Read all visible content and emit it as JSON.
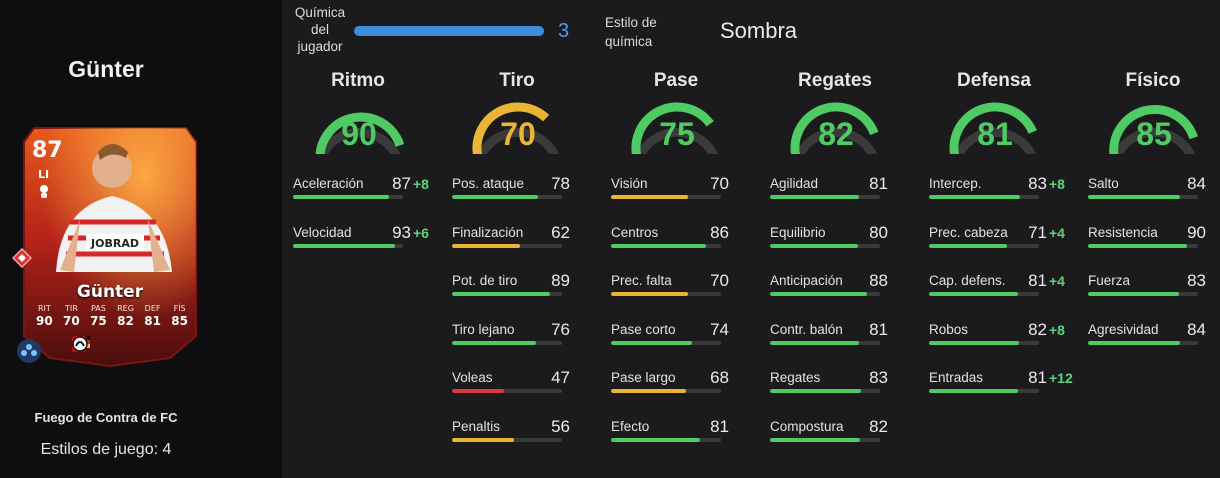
{
  "player": {
    "name": "Günter",
    "version": "Fuego de Contra de FC",
    "playstyles": "Estilos de juego: 4"
  },
  "card": {
    "ovr": "87",
    "position": "LI",
    "name": "Günter",
    "shirt_text": "JOBRAD",
    "stats": [
      {
        "label": "RIT",
        "value": "90"
      },
      {
        "label": "TIR",
        "value": "70"
      },
      {
        "label": "PAS",
        "value": "75"
      },
      {
        "label": "REG",
        "value": "82"
      },
      {
        "label": "DEF",
        "value": "81"
      },
      {
        "label": "FÍS",
        "value": "85"
      }
    ]
  },
  "chemistry": {
    "label": "Química del jugador",
    "value": "3",
    "level_fraction": 1.0,
    "style_label": "Estilo de química",
    "style_value": "Sombra"
  },
  "colors": {
    "green": "#4ecb63",
    "yellow": "#e9b533",
    "red": "#d83a3e",
    "blue": "#3e8ede",
    "track": "#3a3a3a"
  },
  "categories": [
    {
      "name": "Ritmo",
      "value": 90,
      "color": "#4ecb63",
      "stats": [
        {
          "label": "Aceleración",
          "value": 87,
          "boost": "+8",
          "color": "#4ecb63"
        },
        {
          "label": "Velocidad",
          "value": 93,
          "boost": "+6",
          "color": "#4ecb63"
        }
      ]
    },
    {
      "name": "Tiro",
      "value": 70,
      "color": "#e9b533",
      "stats": [
        {
          "label": "Pos. ataque",
          "value": 78,
          "boost": "",
          "color": "#4ecb63"
        },
        {
          "label": "Finalización",
          "value": 62,
          "boost": "",
          "color": "#e9b533"
        },
        {
          "label": "Pot. de tiro",
          "value": 89,
          "boost": "",
          "color": "#4ecb63"
        },
        {
          "label": "Tiro lejano",
          "value": 76,
          "boost": "",
          "color": "#4ecb63"
        },
        {
          "label": "Voleas",
          "value": 47,
          "boost": "",
          "color": "#d83a3e"
        },
        {
          "label": "Penaltis",
          "value": 56,
          "boost": "",
          "color": "#e9b533"
        }
      ]
    },
    {
      "name": "Pase",
      "value": 75,
      "color": "#4ecb63",
      "stats": [
        {
          "label": "Visión",
          "value": 70,
          "boost": "",
          "color": "#e9b533"
        },
        {
          "label": "Centros",
          "value": 86,
          "boost": "",
          "color": "#4ecb63"
        },
        {
          "label": "Prec. falta",
          "value": 70,
          "boost": "",
          "color": "#e9b533"
        },
        {
          "label": "Pase corto",
          "value": 74,
          "boost": "",
          "color": "#4ecb63"
        },
        {
          "label": "Pase largo",
          "value": 68,
          "boost": "",
          "color": "#e9b533"
        },
        {
          "label": "Efecto",
          "value": 81,
          "boost": "",
          "color": "#4ecb63"
        }
      ]
    },
    {
      "name": "Regates",
      "value": 82,
      "color": "#4ecb63",
      "stats": [
        {
          "label": "Agilidad",
          "value": 81,
          "boost": "",
          "color": "#4ecb63"
        },
        {
          "label": "Equilibrio",
          "value": 80,
          "boost": "",
          "color": "#4ecb63"
        },
        {
          "label": "Anticipación",
          "value": 88,
          "boost": "",
          "color": "#4ecb63"
        },
        {
          "label": "Contr. balón",
          "value": 81,
          "boost": "",
          "color": "#4ecb63"
        },
        {
          "label": "Regates",
          "value": 83,
          "boost": "",
          "color": "#4ecb63"
        },
        {
          "label": "Compostura",
          "value": 82,
          "boost": "",
          "color": "#4ecb63"
        }
      ]
    },
    {
      "name": "Defensa",
      "value": 81,
      "color": "#4ecb63",
      "stats": [
        {
          "label": "Intercep.",
          "value": 83,
          "boost": "+8",
          "color": "#4ecb63"
        },
        {
          "label": "Prec. cabeza",
          "value": 71,
          "boost": "+4",
          "color": "#4ecb63"
        },
        {
          "label": "Cap. defens.",
          "value": 81,
          "boost": "+4",
          "color": "#4ecb63"
        },
        {
          "label": "Robos",
          "value": 82,
          "boost": "+8",
          "color": "#4ecb63"
        },
        {
          "label": "Entradas",
          "value": 81,
          "boost": "+12",
          "color": "#4ecb63"
        }
      ]
    },
    {
      "name": "Físico",
      "value": 85,
      "color": "#4ecb63",
      "stats": [
        {
          "label": "Salto",
          "value": 84,
          "boost": "",
          "color": "#4ecb63"
        },
        {
          "label": "Resistencia",
          "value": 90,
          "boost": "",
          "color": "#4ecb63"
        },
        {
          "label": "Fuerza",
          "value": 83,
          "boost": "",
          "color": "#4ecb63"
        },
        {
          "label": "Agresividad",
          "value": 84,
          "boost": "",
          "color": "#4ecb63"
        }
      ]
    }
  ]
}
